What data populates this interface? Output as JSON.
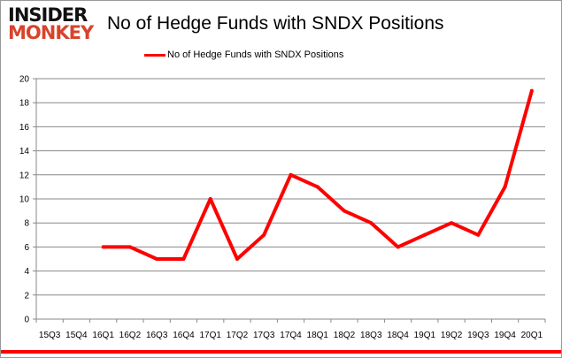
{
  "logo": {
    "line1": "INSIDER",
    "line2": "MONKEY"
  },
  "chart_data": {
    "type": "line",
    "title": "No of Hedge Funds with SNDX Positions",
    "xlabel": "",
    "ylabel": "",
    "categories": [
      "15Q3",
      "15Q4",
      "16Q1",
      "16Q2",
      "16Q3",
      "16Q4",
      "17Q1",
      "17Q2",
      "17Q3",
      "17Q4",
      "18Q1",
      "18Q2",
      "18Q3",
      "18Q4",
      "19Q1",
      "19Q2",
      "19Q3",
      "19Q4",
      "20Q1"
    ],
    "series": [
      {
        "name": "No of Hedge Funds with SNDX Positions",
        "color": "#ff0000",
        "values": [
          null,
          null,
          6,
          6,
          5,
          5,
          10,
          5,
          7,
          12,
          11,
          9,
          8,
          6,
          7,
          8,
          7,
          11,
          19
        ]
      }
    ],
    "ylim": [
      0,
      20
    ],
    "yticks": [
      0,
      2,
      4,
      6,
      8,
      10,
      12,
      14,
      16,
      18,
      20
    ],
    "grid": true,
    "legend": "top-center"
  }
}
